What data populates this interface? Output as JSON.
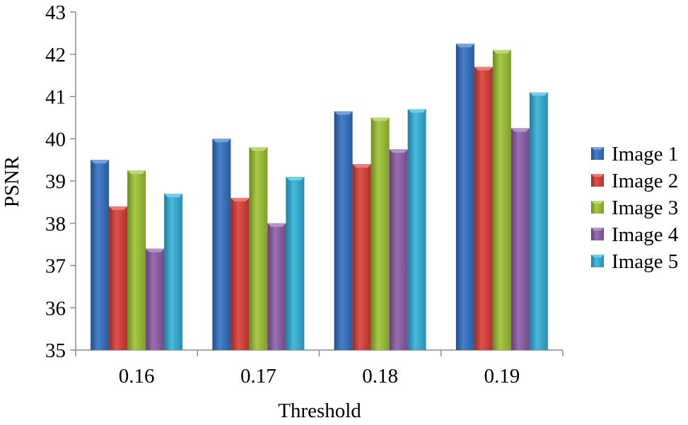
{
  "chart_data": {
    "type": "bar",
    "title": "",
    "xlabel": "Threshold",
    "ylabel": "PSNR",
    "categories": [
      "0.16",
      "0.17",
      "0.18",
      "0.19"
    ],
    "ylim": [
      35,
      43
    ],
    "yticks": [
      "35",
      "36",
      "37",
      "38",
      "39",
      "40",
      "41",
      "42",
      "43"
    ],
    "grid": false,
    "legend_position": "right",
    "series": [
      {
        "name": "Image 1",
        "color": "#2e6fc2",
        "values": [
          39.5,
          40.0,
          40.65,
          42.25
        ]
      },
      {
        "name": "Image 2",
        "color": "#d93a33",
        "values": [
          38.4,
          38.6,
          39.4,
          41.7
        ]
      },
      {
        "name": "Image 3",
        "color": "#9bc22f",
        "values": [
          39.25,
          39.8,
          40.5,
          42.1
        ]
      },
      {
        "name": "Image 4",
        "color": "#8b5aa6",
        "values": [
          37.4,
          38.0,
          39.75,
          40.25
        ]
      },
      {
        "name": "Image 5",
        "color": "#2fb0d8",
        "values": [
          38.7,
          39.1,
          40.7,
          41.1
        ]
      }
    ]
  }
}
